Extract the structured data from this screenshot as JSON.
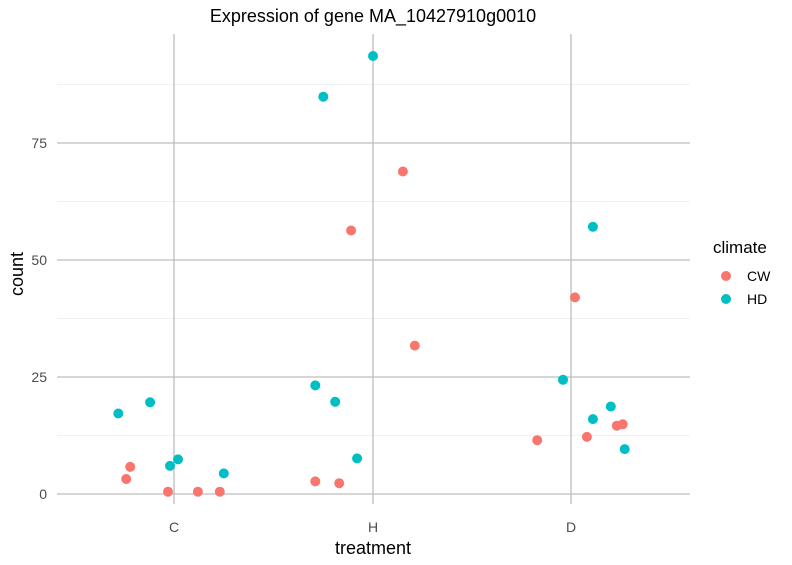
{
  "chart_data": {
    "type": "scatter",
    "title": "Expression of gene MA_10427910g0010",
    "xlabel": "treatment",
    "ylabel": "count",
    "categories": [
      "C",
      "H",
      "D"
    ],
    "yticks": [
      0,
      25,
      50,
      75
    ],
    "ylim": [
      -2,
      98
    ],
    "grid": true,
    "legend": {
      "title": "climate",
      "placement": "right",
      "entries": [
        {
          "name": "CW",
          "color": "#F8766D"
        },
        {
          "name": "HD",
          "color": "#00BFC4"
        }
      ]
    },
    "series": [
      {
        "name": "CW",
        "color": "#F8766D",
        "points": [
          {
            "x": "C",
            "jitter": -0.24,
            "y": 3.2
          },
          {
            "x": "C",
            "jitter": -0.22,
            "y": 5.8
          },
          {
            "x": "C",
            "jitter": -0.03,
            "y": 0.5
          },
          {
            "x": "C",
            "jitter": 0.12,
            "y": 0.5
          },
          {
            "x": "C",
            "jitter": 0.23,
            "y": 0.5
          },
          {
            "x": "H",
            "jitter": -0.29,
            "y": 2.7
          },
          {
            "x": "H",
            "jitter": -0.17,
            "y": 2.3
          },
          {
            "x": "H",
            "jitter": -0.11,
            "y": 56.3
          },
          {
            "x": "H",
            "jitter": 0.15,
            "y": 68.9
          },
          {
            "x": "H",
            "jitter": 0.21,
            "y": 31.7
          },
          {
            "x": "D",
            "jitter": -0.17,
            "y": 11.5
          },
          {
            "x": "D",
            "jitter": 0.02,
            "y": 42.0
          },
          {
            "x": "D",
            "jitter": 0.08,
            "y": 12.2
          },
          {
            "x": "D",
            "jitter": 0.23,
            "y": 14.6
          },
          {
            "x": "D",
            "jitter": 0.26,
            "y": 14.9
          }
        ]
      },
      {
        "name": "HD",
        "color": "#00BFC4",
        "points": [
          {
            "x": "C",
            "jitter": -0.28,
            "y": 17.2
          },
          {
            "x": "C",
            "jitter": -0.12,
            "y": 19.6
          },
          {
            "x": "C",
            "jitter": -0.02,
            "y": 6.0
          },
          {
            "x": "C",
            "jitter": 0.02,
            "y": 7.4
          },
          {
            "x": "C",
            "jitter": 0.25,
            "y": 4.4
          },
          {
            "x": "H",
            "jitter": -0.29,
            "y": 23.2
          },
          {
            "x": "H",
            "jitter": -0.25,
            "y": 84.9
          },
          {
            "x": "H",
            "jitter": -0.19,
            "y": 19.7
          },
          {
            "x": "H",
            "jitter": -0.08,
            "y": 7.6
          },
          {
            "x": "H",
            "jitter": 0.0,
            "y": 93.6
          },
          {
            "x": "D",
            "jitter": -0.04,
            "y": 24.4
          },
          {
            "x": "D",
            "jitter": 0.11,
            "y": 16.0
          },
          {
            "x": "D",
            "jitter": 0.11,
            "y": 57.1
          },
          {
            "x": "D",
            "jitter": 0.2,
            "y": 18.7
          },
          {
            "x": "D",
            "jitter": 0.27,
            "y": 9.6
          }
        ]
      }
    ]
  }
}
